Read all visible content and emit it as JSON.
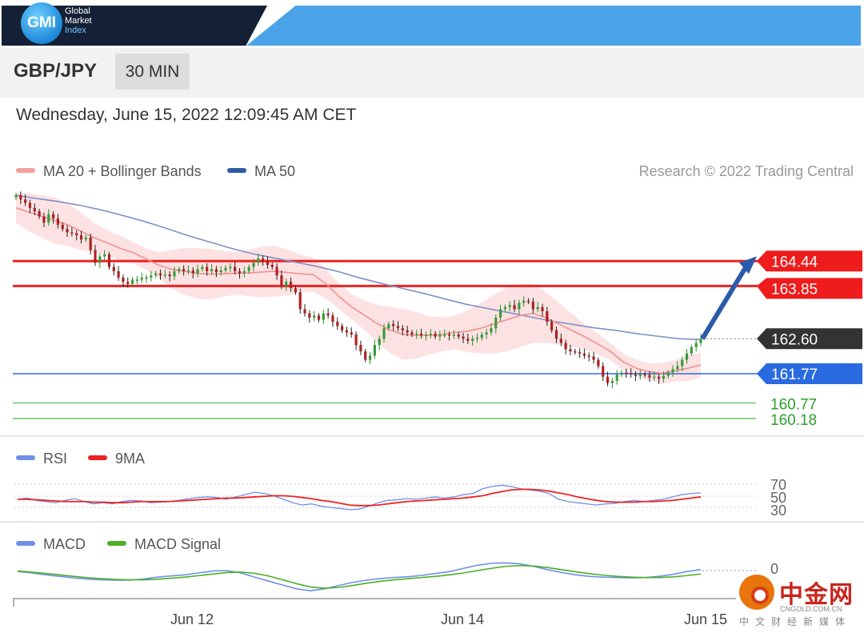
{
  "header": {
    "logo_mark": "GMI",
    "logo_lines": [
      "Global",
      "Market",
      "Index"
    ],
    "colors": {
      "dark": "#142035",
      "blue": "#4aa3e6"
    }
  },
  "instrument": {
    "pair": "GBP/JPY",
    "interval": "30 MIN"
  },
  "timestamp": "Wednesday, June 15, 2022 12:09:45 AM CET",
  "main_legend": [
    {
      "label": "MA 20 + Bollinger Bands",
      "color": "#f08080"
    },
    {
      "label": "MA 50",
      "color": "#2f5aa8"
    }
  ],
  "credit": "Research © 2022 Trading Central",
  "chart_data": [
    {
      "type": "candlestick",
      "title": "",
      "x_ticks": [
        "Jun 12",
        "Jun 14",
        "Jun 15"
      ],
      "ylim": [
        159.8,
        166.0
      ],
      "close": [
        166.0,
        165.9,
        165.82,
        165.7,
        165.62,
        165.5,
        165.35,
        165.55,
        165.45,
        165.3,
        165.2,
        165.12,
        165.1,
        165.05,
        164.95,
        165.0,
        164.7,
        164.4,
        164.55,
        164.6,
        164.3,
        164.2,
        164.05,
        163.95,
        163.9,
        164.0,
        164.0,
        164.05,
        164.05,
        164.1,
        164.15,
        164.1,
        164.12,
        164.08,
        164.2,
        164.25,
        164.2,
        164.22,
        164.15,
        164.25,
        164.3,
        164.2,
        164.25,
        164.18,
        164.22,
        164.28,
        164.3,
        164.2,
        164.15,
        164.2,
        164.3,
        164.4,
        164.5,
        164.45,
        164.35,
        164.3,
        164.1,
        163.85,
        163.95,
        163.8,
        163.7,
        163.3,
        163.2,
        163.1,
        163.15,
        163.05,
        163.2,
        163.15,
        163.0,
        162.9,
        162.8,
        162.75,
        162.7,
        162.45,
        162.3,
        162.1,
        162.2,
        162.45,
        162.6,
        162.85,
        162.95,
        162.9,
        162.85,
        162.8,
        162.75,
        162.7,
        162.72,
        162.68,
        162.7,
        162.72,
        162.65,
        162.7,
        162.7,
        162.68,
        162.7,
        162.65,
        162.6,
        162.55,
        162.6,
        162.62,
        162.7,
        162.75,
        162.85,
        163.1,
        163.3,
        163.35,
        163.4,
        163.3,
        163.45,
        163.5,
        163.48,
        163.3,
        163.35,
        163.25,
        163.0,
        162.8,
        162.6,
        162.5,
        162.35,
        162.3,
        162.28,
        162.25,
        162.2,
        162.18,
        162.1,
        161.95,
        161.7,
        161.55,
        161.6,
        161.75,
        161.8,
        161.78,
        161.75,
        161.72,
        161.76,
        161.74,
        161.68,
        161.7,
        161.65,
        161.72,
        161.8,
        161.88,
        161.95,
        162.1,
        162.25,
        162.4,
        162.5,
        162.6
      ],
      "ma20": [
        165.7,
        165.6,
        165.5,
        165.4,
        165.3,
        165.15,
        165.0,
        164.88,
        164.75,
        164.65,
        164.5,
        164.35,
        164.25,
        164.2,
        164.15,
        164.13,
        164.14,
        164.15,
        164.16,
        164.18,
        164.2,
        164.17,
        164.14,
        164.12,
        163.9,
        163.6,
        163.35,
        163.15,
        162.95,
        162.8,
        162.7,
        162.68,
        162.68,
        162.7,
        162.75,
        162.78,
        162.85,
        162.95,
        163.05,
        163.15,
        163.2,
        163.1,
        162.95,
        162.8,
        162.65,
        162.48,
        162.3,
        162.05,
        161.9,
        161.82,
        161.78,
        161.84,
        161.9,
        161.98
      ],
      "ma20_x_fraction_of_candles": "evenly spread across candle range",
      "ma50": [
        166.0,
        165.92,
        165.85,
        165.76,
        165.65,
        165.52,
        165.38,
        165.22,
        165.05,
        164.9,
        164.75,
        164.62,
        164.52,
        164.42,
        164.32,
        164.2,
        164.05,
        163.92,
        163.8,
        163.68,
        163.55,
        163.42,
        163.32,
        163.22,
        163.12,
        163.02,
        162.94,
        162.86,
        162.8,
        162.72,
        162.66,
        162.6,
        162.58
      ],
      "bollinger_upper_lower_spread": [
        0.35,
        0.45,
        0.5,
        0.55,
        0.5,
        0.45,
        0.35,
        0.3,
        0.3,
        0.25,
        0.25,
        0.3,
        0.45,
        0.55,
        0.6,
        0.6,
        0.55,
        0.5,
        0.55,
        0.6,
        0.6,
        0.55,
        0.45,
        0.4,
        0.35,
        0.3,
        0.3,
        0.35,
        0.45,
        0.55,
        0.6,
        0.55,
        0.45,
        0.4,
        0.4,
        0.5,
        0.6,
        0.7,
        0.75,
        0.75,
        0.7,
        0.6,
        0.5,
        0.4,
        0.3,
        0.25,
        0.2,
        0.2,
        0.2,
        0.2,
        0.25,
        0.25,
        0.3,
        0.3
      ],
      "levels": [
        {
          "value": 164.44,
          "label": "164.44",
          "style": "resistance",
          "color": "#ee2222"
        },
        {
          "value": 163.85,
          "label": "163.85",
          "style": "resistance",
          "color": "#ee2222"
        },
        {
          "value": 162.6,
          "label": "162.60",
          "style": "last",
          "color": "#333333"
        },
        {
          "value": 161.77,
          "label": "161.77",
          "style": "pivot",
          "color": "#2a6ae0"
        },
        {
          "value": 160.77,
          "label": "160.77",
          "style": "support",
          "color": "#2f9e2f"
        },
        {
          "value": 160.18,
          "label": "160.18",
          "style": "support",
          "color": "#2f9e2f"
        }
      ],
      "arrow": {
        "from_value": 162.6,
        "to_value": 164.44,
        "color": "#2b5ba8"
      }
    },
    {
      "type": "line",
      "title": "",
      "legend": [
        {
          "name": "RSI",
          "color": "#6f8fe8"
        },
        {
          "name": "9MA",
          "color": "#ee2222"
        }
      ],
      "levels": [
        70,
        50,
        30
      ],
      "ylim": [
        20,
        80
      ],
      "series": [
        {
          "name": "RSI",
          "values": [
            44,
            46,
            42,
            40,
            38,
            42,
            45,
            40,
            36,
            38,
            36,
            40,
            42,
            41,
            38,
            39,
            40,
            42,
            45,
            47,
            48,
            47,
            44,
            48,
            52,
            56,
            54,
            50,
            44,
            38,
            34,
            36,
            32,
            30,
            28,
            26,
            27,
            32,
            38,
            42,
            43,
            45,
            44,
            46,
            48,
            46,
            48,
            52,
            54,
            62,
            66,
            68,
            66,
            62,
            60,
            58,
            54,
            44,
            40,
            38,
            36,
            34,
            36,
            37,
            40,
            42,
            40,
            42,
            44,
            48,
            52,
            54,
            55
          ]
        },
        {
          "name": "9MA",
          "values": [
            44,
            44,
            43,
            42,
            41,
            40,
            40,
            40,
            39,
            39,
            38,
            38,
            39,
            40,
            40,
            40,
            40,
            41,
            42,
            43,
            44,
            45,
            46,
            46,
            47,
            48,
            49,
            50,
            50,
            49,
            47,
            45,
            42,
            40,
            37,
            34,
            33,
            33,
            34,
            36,
            38,
            40,
            41,
            42,
            43,
            44,
            45,
            46,
            48,
            50,
            54,
            57,
            60,
            61,
            61,
            60,
            58,
            55,
            52,
            48,
            45,
            42,
            40,
            39,
            39,
            39,
            40,
            40,
            41,
            42,
            44,
            46,
            48
          ]
        }
      ]
    },
    {
      "type": "line",
      "title": "",
      "legend": [
        {
          "name": "MACD",
          "color": "#6f8fe8"
        },
        {
          "name": "MACD Signal",
          "color": "#4caf25"
        }
      ],
      "levels": [
        0
      ],
      "ylim": [
        -1.2,
        0.6
      ],
      "series": [
        {
          "name": "MACD",
          "values": [
            -0.05,
            -0.12,
            -0.22,
            -0.3,
            -0.38,
            -0.44,
            -0.48,
            -0.5,
            -0.5,
            -0.44,
            -0.34,
            -0.28,
            -0.22,
            -0.12,
            -0.02,
            0.0,
            -0.12,
            -0.34,
            -0.55,
            -0.75,
            -0.95,
            -1.05,
            -0.95,
            -0.78,
            -0.62,
            -0.5,
            -0.42,
            -0.36,
            -0.32,
            -0.25,
            -0.15,
            -0.05,
            0.12,
            0.28,
            0.38,
            0.4,
            0.35,
            0.22,
            0.05,
            -0.1,
            -0.22,
            -0.3,
            -0.34,
            -0.36,
            -0.38,
            -0.36,
            -0.3,
            -0.2,
            -0.05,
            0.05
          ]
        },
        {
          "name": "MACD Signal",
          "values": [
            -0.02,
            -0.08,
            -0.15,
            -0.22,
            -0.3,
            -0.37,
            -0.42,
            -0.46,
            -0.48,
            -0.48,
            -0.45,
            -0.4,
            -0.34,
            -0.26,
            -0.18,
            -0.1,
            -0.08,
            -0.14,
            -0.28,
            -0.48,
            -0.68,
            -0.85,
            -0.92,
            -0.88,
            -0.78,
            -0.66,
            -0.56,
            -0.48,
            -0.42,
            -0.36,
            -0.3,
            -0.22,
            -0.12,
            0.0,
            0.12,
            0.22,
            0.26,
            0.24,
            0.16,
            0.05,
            -0.06,
            -0.16,
            -0.24,
            -0.3,
            -0.34,
            -0.36,
            -0.36,
            -0.33,
            -0.26,
            -0.18
          ]
        }
      ]
    }
  ],
  "watermark": {
    "title": "中金网",
    "url": "CNGOLD.COM.CN",
    "subtitle": "中文财经新媒体"
  }
}
